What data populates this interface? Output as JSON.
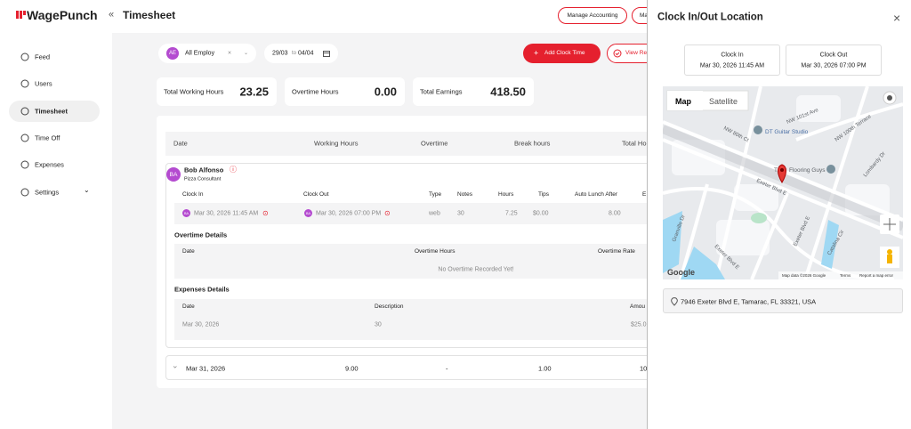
{
  "sidebar": {
    "logo": "WagePunch",
    "nav": [
      "Feed",
      "Users",
      "Timesheet",
      "Time Off",
      "Expenses",
      "Settings"
    ]
  },
  "header": {
    "title": "Timesheet",
    "buttons": [
      "Manage Accounting",
      "Ma"
    ]
  },
  "filters": {
    "employee_avatar": "AE",
    "employee": "All Employ",
    "date_from": "29/03",
    "date_sep": "to",
    "date_to": "04/04",
    "add_button": "Add Clock Time",
    "view_button": "View Re"
  },
  "stats": [
    {
      "label": "Total Working Hours",
      "value": "23.25"
    },
    {
      "label": "Overtime Hours",
      "value": "0.00"
    },
    {
      "label": "Total Earnings",
      "value": "418.50"
    }
  ],
  "table": {
    "columns": [
      "Date",
      "Working Hours",
      "Overtime",
      "Break hours",
      "Total Ho"
    ],
    "employee": {
      "avatar": "BA",
      "name": "Bob Alfonso",
      "role": "Pizza Consultant"
    },
    "entry_columns": [
      "Clock In",
      "Clock Out",
      "Type",
      "Notes",
      "Hours",
      "Tips",
      "Auto Lunch After",
      "E"
    ],
    "entry": {
      "clock_in_avatar": "BA",
      "clock_in": "Mar 30, 2026 11:45 AM",
      "clock_out_avatar": "BA",
      "clock_out": "Mar 30, 2026 07:00 PM",
      "type": "web",
      "notes": "30",
      "hours": "7.25",
      "tips": "$0.00",
      "auto_lunch_after": "8.00"
    },
    "overtime": {
      "title": "Overtime Details",
      "columns": [
        "Date",
        "Overtime Hours",
        "Overtime Rate"
      ],
      "empty": "No Overtime Recorded Yet!"
    },
    "expenses": {
      "title": "Expenses Details",
      "columns": [
        "Date",
        "Description",
        "Amou"
      ],
      "rows": [
        [
          "Mar 30, 2026",
          "30",
          "$25.0"
        ]
      ]
    },
    "next_row": [
      "Mar 31, 2026",
      "9.00",
      "-",
      "1.00",
      "10"
    ]
  },
  "panel": {
    "title": "Clock In/Out Location",
    "clock_in": {
      "label": "Clock In",
      "time": "Mar 30, 2026 11:45 AM"
    },
    "clock_out": {
      "label": "Clock Out",
      "time": "Mar 30, 2026 07:00 PM"
    },
    "map": {
      "tabs": [
        "Map",
        "Satellite"
      ],
      "labels": [
        "DT Guitar Studio",
        "NW 101st Ave",
        "NW 80th Ct",
        "NW 100th Terrace",
        "T",
        "Flooring Guys",
        "Exeter Blvd E",
        "Lombardy Dr",
        "Granville Dr",
        "Exeter Blvd E",
        "Exeter Blvd E",
        "Catalina Cir"
      ],
      "logo": "Google",
      "attribution": "Map data ©2026 Google",
      "terms": "Terms",
      "report": "Report a map error"
    },
    "address": "7946 Exeter Blvd E, Tamarac, FL 33321, USA"
  }
}
